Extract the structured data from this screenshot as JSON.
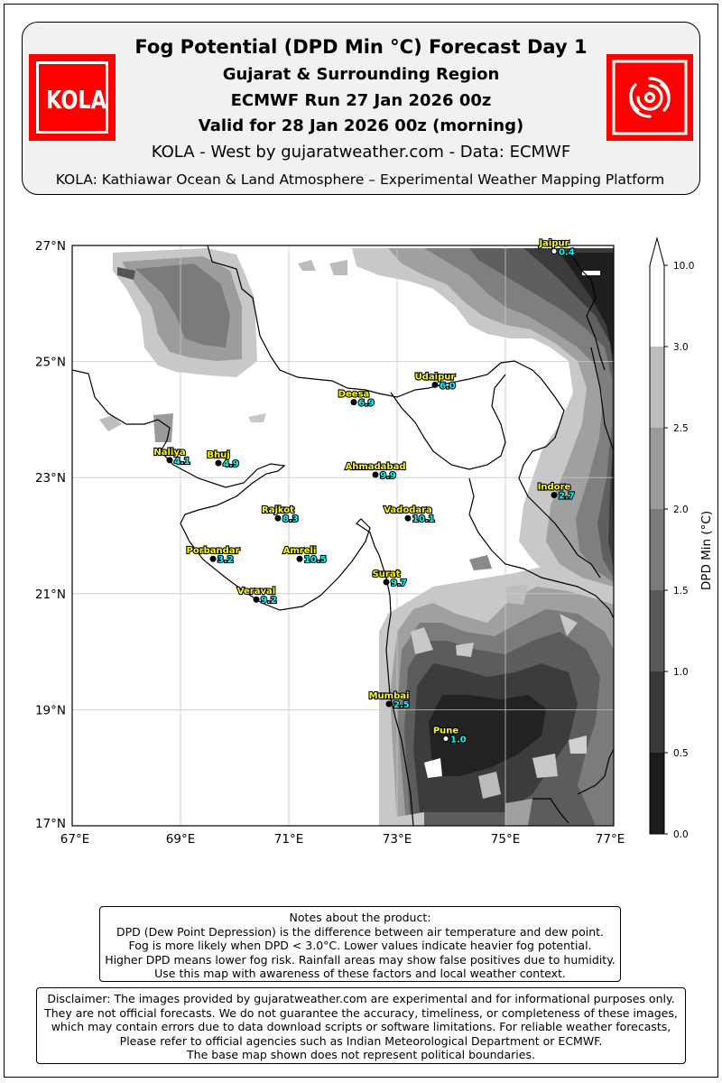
{
  "header": {
    "title": "Fog Potential (DPD Min °C) Forecast Day 1",
    "region": "Gujarat & Surrounding Region",
    "run": "ECMWF Run 27 Jan 2026 00z",
    "valid": "Valid for 28 Jan 2026 00z (morning)",
    "byline": "KOLA - West by gujaratweather.com  -  Data: ECMWF",
    "platform": "KOLA: Kathiawar Ocean & Land Atmosphere – Experimental Weather Mapping Platform",
    "logo_left_text": "KOLA",
    "logo_left_icon": "kola-logo-icon",
    "logo_right_icon": "cyclone-swirl-icon",
    "logo_color": "#ff0000"
  },
  "map": {
    "lat_labels": [
      "27°N",
      "25°N",
      "23°N",
      "21°N",
      "19°N",
      "17°N"
    ],
    "lon_labels": [
      "67°E",
      "69°E",
      "71°E",
      "73°E",
      "75°E",
      "77°E"
    ],
    "lat_range": [
      17,
      27
    ],
    "lon_range": [
      67,
      77
    ],
    "cities": [
      {
        "name": "Jaipur",
        "value": "0.4",
        "lon": 75.9,
        "lat": 26.9,
        "marker": "open"
      },
      {
        "name": "Udaipur",
        "value": "6.0",
        "lon": 73.7,
        "lat": 24.6,
        "marker": "filled"
      },
      {
        "name": "Deesa",
        "value": "6.9",
        "lon": 72.2,
        "lat": 24.3,
        "marker": "filled"
      },
      {
        "name": "Naliya",
        "value": "4.1",
        "lon": 68.8,
        "lat": 23.3,
        "marker": "filled"
      },
      {
        "name": "Bhuj",
        "value": "4.9",
        "lon": 69.7,
        "lat": 23.25,
        "marker": "filled"
      },
      {
        "name": "Ahmadabad",
        "value": "9.9",
        "lon": 72.6,
        "lat": 23.05,
        "marker": "filled"
      },
      {
        "name": "Indore",
        "value": "2.7",
        "lon": 75.9,
        "lat": 22.7,
        "marker": "filled"
      },
      {
        "name": "Rajkot",
        "value": "8.3",
        "lon": 70.8,
        "lat": 22.3,
        "marker": "filled"
      },
      {
        "name": "Vadodara",
        "value": "10.1",
        "lon": 73.2,
        "lat": 22.3,
        "marker": "filled"
      },
      {
        "name": "Porbandar",
        "value": "3.2",
        "lon": 69.6,
        "lat": 21.6,
        "marker": "filled"
      },
      {
        "name": "Amreli",
        "value": "10.5",
        "lon": 71.2,
        "lat": 21.6,
        "marker": "filled"
      },
      {
        "name": "Surat",
        "value": "9.7",
        "lon": 72.8,
        "lat": 21.2,
        "marker": "filled"
      },
      {
        "name": "Veraval",
        "value": "9.2",
        "lon": 70.4,
        "lat": 20.9,
        "marker": "filled"
      },
      {
        "name": "Mumbai",
        "value": "2.5",
        "lon": 72.85,
        "lat": 19.1,
        "marker": "filled"
      },
      {
        "name": "Pune",
        "value": "1.0",
        "lon": 73.9,
        "lat": 18.5,
        "marker": "open"
      }
    ],
    "city_label_color": "#ffff00",
    "value_label_color": "#00ffff"
  },
  "colorbar": {
    "label": "DPD Min (°C)",
    "ticks": [
      "0.0",
      "0.5",
      "1.0",
      "1.5",
      "2.0",
      "2.5",
      "3.0",
      "10.0"
    ],
    "colors": [
      "#1b1b1b",
      "#3a3a3a",
      "#5a5a5a",
      "#7a7a7a",
      "#9a9a9a",
      "#bcbcbc",
      "#dcdcdc",
      "#ffffff"
    ]
  },
  "notes": {
    "lines": [
      "Notes about the product:",
      "DPD (Dew Point Depression) is the difference between air temperature and dew point.",
      "Fog is more likely when DPD < 3.0°C. Lower values indicate heavier fog potential.",
      "Higher DPD means lower fog risk. Rainfall areas may show false positives due to humidity.",
      "Use this map with awareness of these factors and local weather context."
    ]
  },
  "disclaimer": {
    "lines": [
      "Disclaimer: The images provided by gujaratweather.com are experimental and for informational purposes only.",
      "They are not official forecasts. We do not guarantee the accuracy, timeliness, or completeness of these images,",
      "which may contain errors due to data download scripts or software limitations. For reliable weather forecasts,",
      "Please refer to official agencies such as Indian Meteorological Department or ECMWF.",
      "The base map shown does not represent political boundaries."
    ]
  }
}
